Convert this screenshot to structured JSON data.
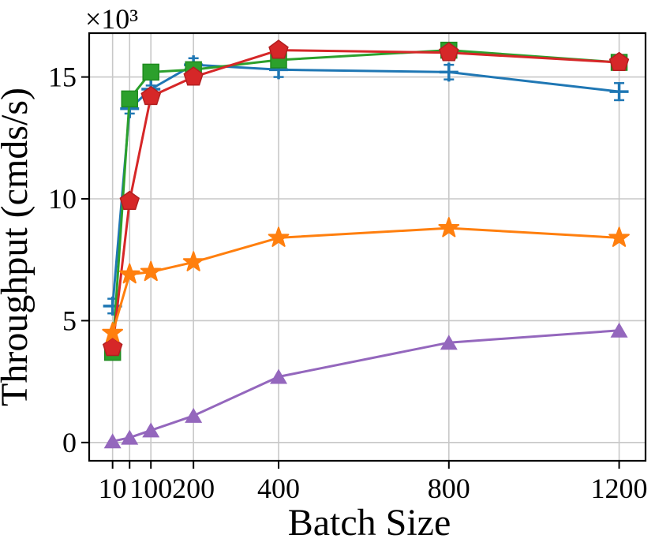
{
  "chart_data": {
    "type": "line",
    "title": "",
    "xlabel": "Batch Size",
    "ylabel": "Throughput (cmds/s)",
    "offset_text": "×10³",
    "y_unit": "cmds/s (thousands)",
    "grid": true,
    "legend": "none",
    "x": [
      10,
      50,
      100,
      200,
      400,
      800,
      1200
    ],
    "xticks": {
      "values": [
        10,
        50,
        100,
        200,
        400,
        800,
        1200
      ],
      "labels": [
        "10",
        "",
        "100",
        "200",
        "400",
        "800",
        "1200"
      ]
    },
    "yticks": {
      "values": [
        0,
        5,
        10,
        15
      ],
      "labels": [
        "0",
        "5",
        "10",
        "15"
      ]
    },
    "xlim": [
      -45,
      1262
    ],
    "ylim": [
      -0.75,
      16.8
    ],
    "series": [
      {
        "name": "blue-errorbar-line",
        "color": "#1f77b4",
        "edge": "#1f77b4",
        "marker": "plus",
        "values": [
          5.6,
          13.7,
          14.5,
          15.5,
          15.3,
          15.2,
          14.4
        ],
        "yerr": [
          0.3,
          0.2,
          0.15,
          0.27,
          0.3,
          0.3,
          0.35
        ]
      },
      {
        "name": "green-square-line",
        "color": "#2ca02c",
        "edge": "#1f8b1f",
        "marker": "square",
        "values": [
          3.7,
          14.1,
          15.2,
          15.3,
          15.7,
          16.1,
          15.6
        ]
      },
      {
        "name": "red-pentagon-line",
        "color": "#d62728",
        "edge": "#b21f20",
        "marker": "pentagon",
        "values": [
          3.9,
          9.9,
          14.2,
          15.0,
          16.1,
          16.0,
          15.6
        ]
      },
      {
        "name": "orange-star-line",
        "color": "#ff7f0e",
        "edge": "#ff7f0e",
        "marker": "star",
        "values": [
          4.5,
          6.9,
          7.0,
          7.4,
          8.4,
          8.8,
          8.4
        ]
      },
      {
        "name": "purple-triangle-line",
        "color": "#9467bd",
        "edge": "#9467bd",
        "marker": "triangle",
        "values": [
          0.05,
          0.2,
          0.5,
          1.1,
          2.7,
          4.1,
          4.6
        ]
      }
    ]
  }
}
